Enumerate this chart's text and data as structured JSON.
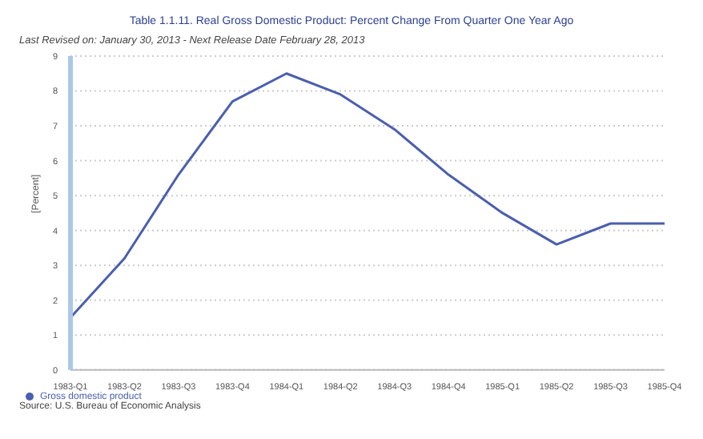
{
  "chart_data": {
    "type": "line",
    "title": "Table 1.1.11. Real Gross Domestic Product: Percent Change From Quarter One Year Ago",
    "subtitle": "Last Revised on: January 30, 2013 - Next Release Date February 28, 2013",
    "ylabel": "[Percent]",
    "categories": [
      "1983-Q1",
      "1983-Q2",
      "1983-Q3",
      "1983-Q4",
      "1984-Q1",
      "1984-Q2",
      "1984-Q3",
      "1984-Q4",
      "1985-Q1",
      "1985-Q2",
      "1985-Q3",
      "1985-Q4"
    ],
    "series": [
      {
        "name": "Gross domestic product",
        "color": "#4a5fae",
        "values": [
          1.5,
          3.2,
          5.6,
          7.7,
          8.5,
          7.9,
          6.9,
          5.6,
          4.5,
          3.6,
          4.2,
          4.2
        ]
      }
    ],
    "ylim": [
      0,
      9
    ],
    "yticks": [
      0,
      1,
      2,
      3,
      4,
      5,
      6,
      7,
      8,
      9
    ],
    "grid": "y",
    "legend": "bottom left",
    "marker": "none",
    "line_style": "solid",
    "annotations": [
      "Source: U.S. Bureau of Economic Analysis"
    ]
  }
}
